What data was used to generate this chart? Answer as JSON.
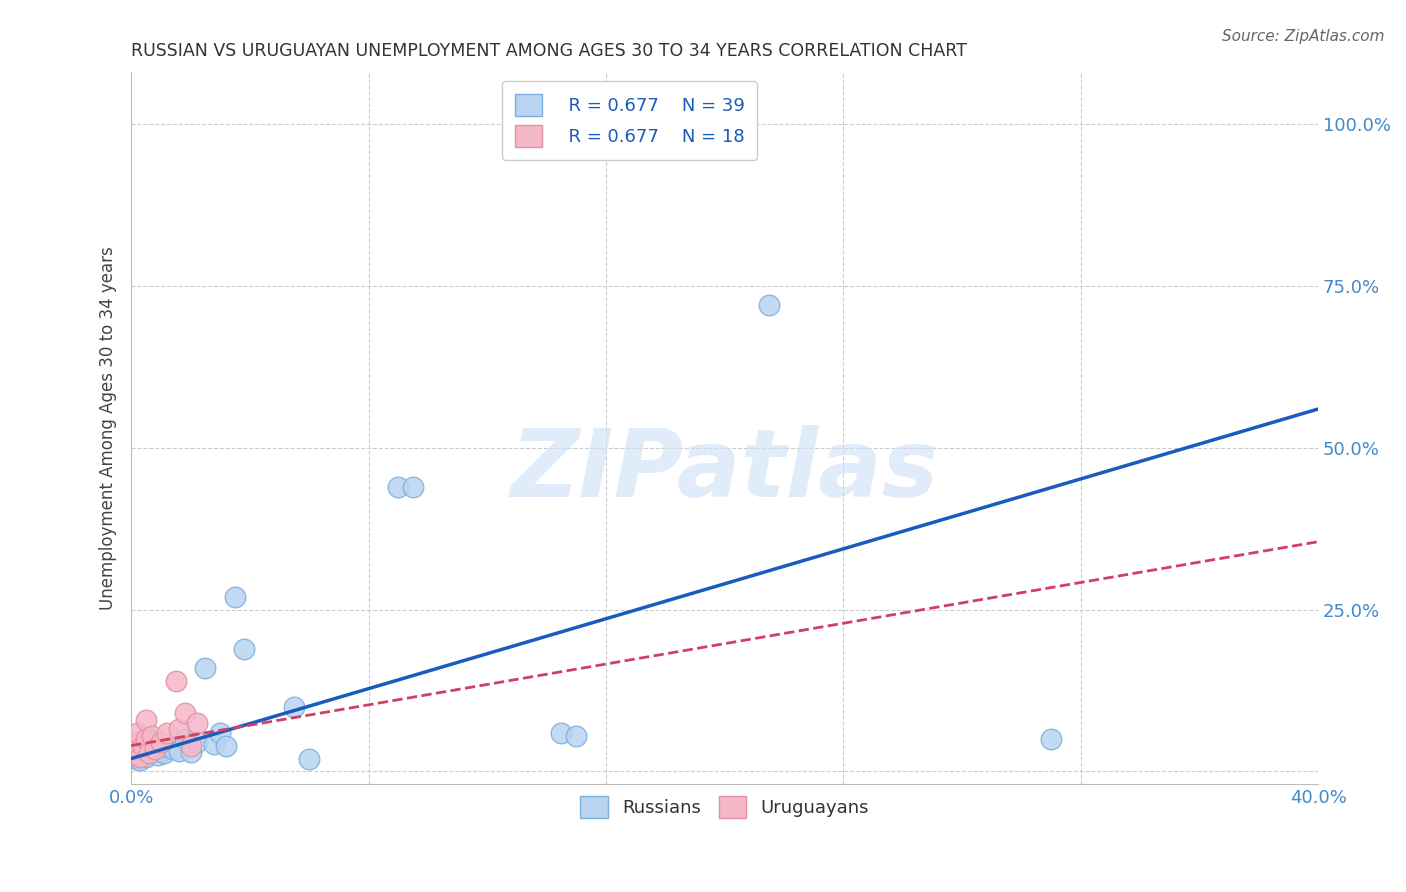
{
  "title": "RUSSIAN VS URUGUAYAN UNEMPLOYMENT AMONG AGES 30 TO 34 YEARS CORRELATION CHART",
  "source": "Source: ZipAtlas.com",
  "ylabel": "Unemployment Among Ages 30 to 34 years",
  "xlim": [
    0.0,
    0.4
  ],
  "ylim": [
    -0.02,
    1.08
  ],
  "xticks": [
    0.0,
    0.08,
    0.16,
    0.24,
    0.32,
    0.4
  ],
  "yticks": [
    0.0,
    0.25,
    0.5,
    0.75,
    1.0
  ],
  "xtick_labels": [
    "0.0%",
    "",
    "",
    "",
    "",
    "40.0%"
  ],
  "ytick_labels": [
    "",
    "25.0%",
    "50.0%",
    "75.0%",
    "100.0%"
  ],
  "watermark": "ZIPatlas",
  "russian_R": 0.677,
  "russian_N": 39,
  "uruguayan_R": 0.677,
  "uruguayan_N": 18,
  "russian_color": "#b8d4f0",
  "russian_edge": "#7ab0e0",
  "russian_line_color": "#1a5bbf",
  "uruguayan_color": "#f5b8c8",
  "uruguayan_edge": "#e090a8",
  "uruguayan_line_color": "#d04060",
  "background_color": "#ffffff",
  "grid_color": "#cccccc",
  "title_color": "#333333",
  "russian_line_x0": 0.0,
  "russian_line_y0": 0.02,
  "russian_line_x1": 0.4,
  "russian_line_y1": 0.56,
  "uruguayan_line_x0": 0.0,
  "uruguayan_line_y0": 0.04,
  "uruguayan_line_x1": 0.4,
  "uruguayan_line_y1": 0.355,
  "russian_x": [
    0.001,
    0.001,
    0.002,
    0.002,
    0.003,
    0.003,
    0.003,
    0.004,
    0.004,
    0.005,
    0.005,
    0.006,
    0.006,
    0.007,
    0.008,
    0.008,
    0.009,
    0.01,
    0.011,
    0.012,
    0.014,
    0.016,
    0.018,
    0.02,
    0.022,
    0.025,
    0.028,
    0.03,
    0.032,
    0.035,
    0.038,
    0.055,
    0.06,
    0.09,
    0.095,
    0.145,
    0.15,
    0.215,
    0.31
  ],
  "russian_y": [
    0.025,
    0.04,
    0.02,
    0.035,
    0.03,
    0.045,
    0.018,
    0.032,
    0.038,
    0.022,
    0.042,
    0.028,
    0.05,
    0.035,
    0.03,
    0.038,
    0.025,
    0.032,
    0.028,
    0.038,
    0.035,
    0.032,
    0.05,
    0.03,
    0.045,
    0.16,
    0.042,
    0.06,
    0.04,
    0.27,
    0.19,
    0.1,
    0.02,
    0.44,
    0.44,
    0.06,
    0.055,
    0.72,
    0.05
  ],
  "uruguayan_x": [
    0.001,
    0.001,
    0.002,
    0.002,
    0.003,
    0.004,
    0.005,
    0.005,
    0.006,
    0.007,
    0.008,
    0.01,
    0.012,
    0.015,
    0.016,
    0.018,
    0.02,
    0.022
  ],
  "uruguayan_y": [
    0.025,
    0.045,
    0.035,
    0.06,
    0.022,
    0.04,
    0.05,
    0.08,
    0.028,
    0.055,
    0.035,
    0.045,
    0.06,
    0.14,
    0.065,
    0.09,
    0.04,
    0.075
  ]
}
